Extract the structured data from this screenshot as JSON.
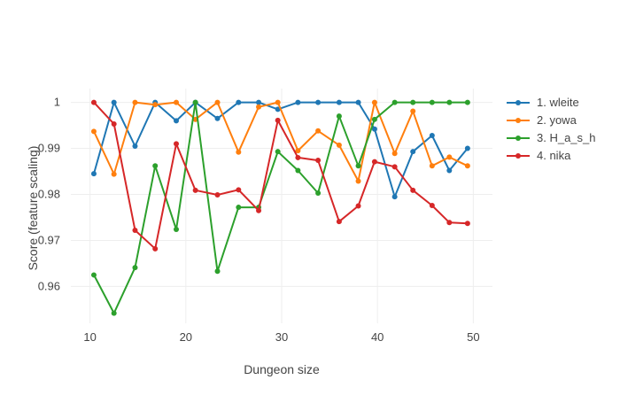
{
  "chart_data": {
    "type": "line",
    "title": "",
    "xlabel": "Dungeon size",
    "ylabel": "Score (feature scaling)",
    "xlim": [
      8,
      52
    ],
    "ylim": [
      0.952,
      1.003
    ],
    "x_ticks": [
      10,
      20,
      30,
      40,
      50
    ],
    "y_ticks": [
      0.96,
      0.97,
      0.98,
      0.99,
      1
    ],
    "y_tick_labels": [
      "0.96",
      "0.97",
      "0.98",
      "0.99",
      "1"
    ],
    "grid": true,
    "legend_position": "top-right",
    "x": [
      10.4,
      12.5,
      14.7,
      16.8,
      19,
      21,
      23.3,
      25.5,
      27.6,
      29.6,
      31.7,
      33.8,
      36,
      38,
      39.7,
      41.8,
      43.7,
      45.7,
      47.5,
      49.4
    ],
    "series": [
      {
        "name": "1. wleite",
        "color": "#1f77b4",
        "values": [
          0.9845,
          1.0,
          0.9905,
          1.0,
          0.996,
          1.0,
          0.9965,
          1.0,
          1.0,
          0.9985,
          1.0,
          1.0,
          1.0,
          1.0,
          0.9942,
          0.9795,
          0.9893,
          0.9928,
          0.9852,
          0.99
        ]
      },
      {
        "name": "2. yowa",
        "color": "#ff7f0e",
        "values": [
          0.9937,
          0.9844,
          1.0,
          0.9995,
          1.0,
          0.9963,
          1.0,
          0.9892,
          0.999,
          1.0,
          0.9895,
          0.9938,
          0.9907,
          0.9829,
          1.0,
          0.9889,
          0.9981,
          0.9862,
          0.9881,
          0.9862
        ]
      },
      {
        "name": "3. H_a_s_h",
        "color": "#2ca02c",
        "values": [
          0.9625,
          0.9542,
          0.9641,
          0.9862,
          0.9724,
          1.0,
          0.9633,
          0.9772,
          0.9772,
          0.9893,
          0.9852,
          0.9803,
          0.997,
          0.9862,
          0.9963,
          1.0,
          1.0,
          1.0,
          1.0,
          1.0
        ]
      },
      {
        "name": "4. nika",
        "color": "#d62728",
        "values": [
          1.0,
          0.9953,
          0.9722,
          0.9682,
          0.991,
          0.9809,
          0.9799,
          0.981,
          0.9765,
          0.9961,
          0.988,
          0.9874,
          0.9741,
          0.9775,
          0.9871,
          0.986,
          0.9809,
          0.9776,
          0.9739,
          0.9737
        ]
      }
    ]
  }
}
